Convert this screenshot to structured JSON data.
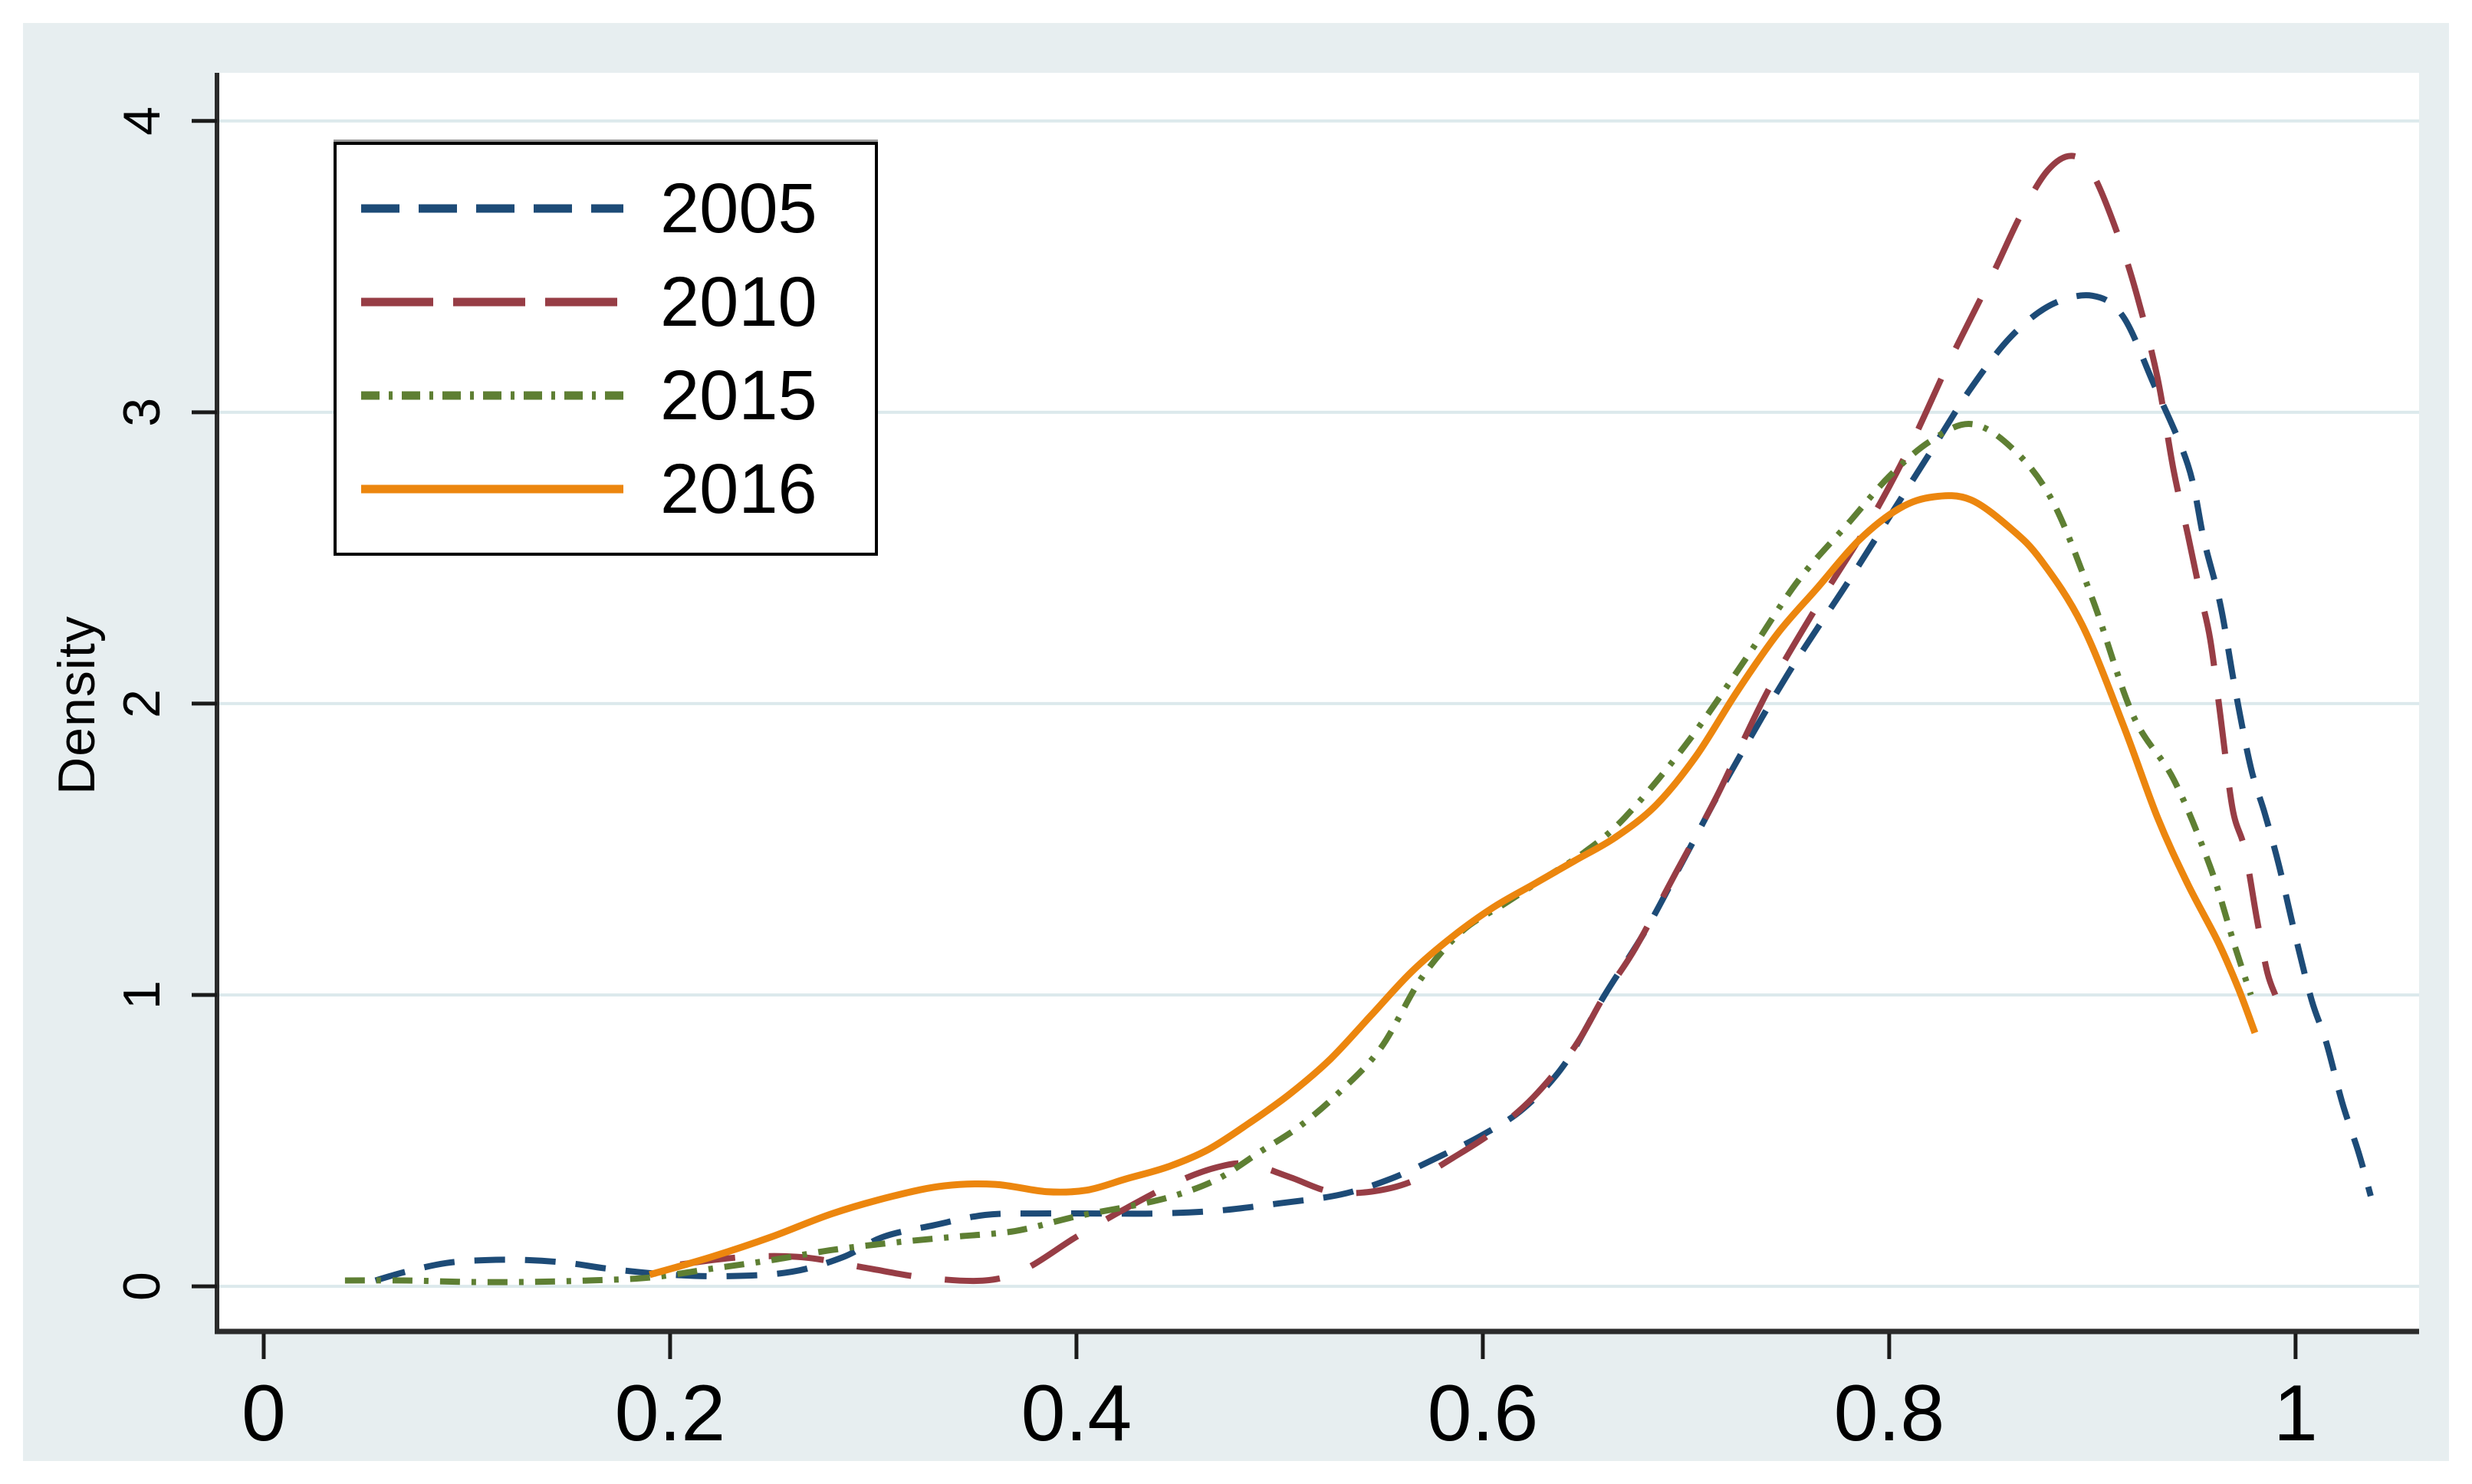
{
  "figure": {
    "background": "#ffffff",
    "panel_background": "#e7eef0",
    "plot_background": "#ffffff",
    "grid_color": "#dce9ec",
    "axis_color": "#2b2b2b",
    "tick_color": "#1a1a1a",
    "text_color": "#000000"
  },
  "chart_data": {
    "type": "line",
    "title": "",
    "xlabel": "",
    "ylabel": "Density",
    "grid": "horizontal",
    "legend_position": "top-left",
    "xlim": [
      -0.023,
      1.0608
    ],
    "ylim": [
      -0.155,
      4.152
    ],
    "x_ticks": [
      0,
      0.2,
      0.4,
      0.6,
      0.8,
      1
    ],
    "x_tick_labels": [
      "0",
      "0.2",
      "0.4",
      "0.6",
      "0.8",
      "1"
    ],
    "y_ticks": [
      0,
      1,
      2,
      3,
      4
    ],
    "y_tick_labels": [
      "0",
      "1",
      "2",
      "3",
      "4"
    ],
    "series": [
      {
        "name": "2005",
        "color": "#1d4b77",
        "line_style": "dashed",
        "points": [
          [
            0.055,
            0.02
          ],
          [
            0.07,
            0.05
          ],
          [
            0.09,
            0.08
          ],
          [
            0.11,
            0.09
          ],
          [
            0.13,
            0.09
          ],
          [
            0.15,
            0.08
          ],
          [
            0.17,
            0.06
          ],
          [
            0.2,
            0.04
          ],
          [
            0.23,
            0.035
          ],
          [
            0.26,
            0.05
          ],
          [
            0.285,
            0.1
          ],
          [
            0.305,
            0.17
          ],
          [
            0.33,
            0.21
          ],
          [
            0.355,
            0.245
          ],
          [
            0.38,
            0.25
          ],
          [
            0.41,
            0.25
          ],
          [
            0.44,
            0.25
          ],
          [
            0.47,
            0.26
          ],
          [
            0.5,
            0.285
          ],
          [
            0.53,
            0.315
          ],
          [
            0.555,
            0.37
          ],
          [
            0.58,
            0.45
          ],
          [
            0.6,
            0.52
          ],
          [
            0.62,
            0.61
          ],
          [
            0.64,
            0.76
          ],
          [
            0.66,
            1.0
          ],
          [
            0.68,
            1.22
          ],
          [
            0.7,
            1.48
          ],
          [
            0.72,
            1.74
          ],
          [
            0.75,
            2.1
          ],
          [
            0.78,
            2.42
          ],
          [
            0.8,
            2.64
          ],
          [
            0.82,
            2.86
          ],
          [
            0.84,
            3.08
          ],
          [
            0.86,
            3.26
          ],
          [
            0.88,
            3.37
          ],
          [
            0.9,
            3.4
          ],
          [
            0.915,
            3.33
          ],
          [
            0.93,
            3.1
          ],
          [
            0.947,
            2.82
          ],
          [
            0.955,
            2.56
          ],
          [
            0.963,
            2.34
          ],
          [
            0.97,
            2.06
          ],
          [
            0.978,
            1.78
          ],
          [
            0.985,
            1.62
          ],
          [
            0.992,
            1.44
          ],
          [
            1.0,
            1.2
          ],
          [
            1.008,
            0.98
          ],
          [
            1.015,
            0.84
          ],
          [
            1.023,
            0.63
          ],
          [
            1.031,
            0.46
          ],
          [
            1.037,
            0.31
          ]
        ]
      },
      {
        "name": "2010",
        "color": "#973d45",
        "line_style": "long-dash",
        "points": [
          [
            0.205,
            0.075
          ],
          [
            0.235,
            0.1
          ],
          [
            0.265,
            0.1
          ],
          [
            0.295,
            0.065
          ],
          [
            0.325,
            0.03
          ],
          [
            0.355,
            0.02
          ],
          [
            0.375,
            0.06
          ],
          [
            0.4,
            0.17
          ],
          [
            0.425,
            0.27
          ],
          [
            0.45,
            0.36
          ],
          [
            0.47,
            0.41
          ],
          [
            0.485,
            0.42
          ],
          [
            0.505,
            0.375
          ],
          [
            0.525,
            0.325
          ],
          [
            0.545,
            0.325
          ],
          [
            0.565,
            0.36
          ],
          [
            0.585,
            0.44
          ],
          [
            0.605,
            0.53
          ],
          [
            0.625,
            0.65
          ],
          [
            0.645,
            0.82
          ],
          [
            0.66,
            1.0
          ],
          [
            0.675,
            1.16
          ],
          [
            0.695,
            1.42
          ],
          [
            0.715,
            1.68
          ],
          [
            0.74,
            2.04
          ],
          [
            0.765,
            2.34
          ],
          [
            0.79,
            2.62
          ],
          [
            0.81,
            2.88
          ],
          [
            0.83,
            3.18
          ],
          [
            0.85,
            3.46
          ],
          [
            0.865,
            3.68
          ],
          [
            0.878,
            3.83
          ],
          [
            0.89,
            3.88
          ],
          [
            0.9,
            3.82
          ],
          [
            0.912,
            3.62
          ],
          [
            0.922,
            3.4
          ],
          [
            0.932,
            3.12
          ],
          [
            0.94,
            2.8
          ],
          [
            0.947,
            2.58
          ],
          [
            0.953,
            2.38
          ],
          [
            0.958,
            2.22
          ],
          [
            0.963,
            1.96
          ],
          [
            0.969,
            1.64
          ],
          [
            0.975,
            1.5
          ],
          [
            0.981,
            1.26
          ],
          [
            0.986,
            1.08
          ],
          [
            0.99,
            1.0
          ]
        ]
      },
      {
        "name": "2015",
        "color": "#5e7f33",
        "line_style": "dash-dot",
        "points": [
          [
            0.04,
            0.02
          ],
          [
            0.07,
            0.02
          ],
          [
            0.1,
            0.015
          ],
          [
            0.13,
            0.015
          ],
          [
            0.16,
            0.02
          ],
          [
            0.19,
            0.03
          ],
          [
            0.22,
            0.06
          ],
          [
            0.25,
            0.09
          ],
          [
            0.28,
            0.125
          ],
          [
            0.31,
            0.15
          ],
          [
            0.34,
            0.17
          ],
          [
            0.37,
            0.19
          ],
          [
            0.4,
            0.24
          ],
          [
            0.43,
            0.28
          ],
          [
            0.45,
            0.315
          ],
          [
            0.47,
            0.37
          ],
          [
            0.49,
            0.46
          ],
          [
            0.51,
            0.55
          ],
          [
            0.53,
            0.67
          ],
          [
            0.55,
            0.82
          ],
          [
            0.57,
            1.06
          ],
          [
            0.59,
            1.22
          ],
          [
            0.61,
            1.31
          ],
          [
            0.63,
            1.4
          ],
          [
            0.65,
            1.49
          ],
          [
            0.67,
            1.61
          ],
          [
            0.7,
            1.86
          ],
          [
            0.73,
            2.16
          ],
          [
            0.755,
            2.42
          ],
          [
            0.78,
            2.62
          ],
          [
            0.8,
            2.78
          ],
          [
            0.82,
            2.9
          ],
          [
            0.84,
            2.96
          ],
          [
            0.86,
            2.88
          ],
          [
            0.88,
            2.7
          ],
          [
            0.9,
            2.36
          ],
          [
            0.92,
            1.96
          ],
          [
            0.94,
            1.74
          ],
          [
            0.958,
            1.44
          ],
          [
            0.97,
            1.17
          ],
          [
            0.978,
            1.0
          ]
        ]
      },
      {
        "name": "2016",
        "color": "#ec860e",
        "line_style": "solid",
        "points": [
          [
            0.19,
            0.04
          ],
          [
            0.22,
            0.1
          ],
          [
            0.25,
            0.17
          ],
          [
            0.28,
            0.25
          ],
          [
            0.31,
            0.31
          ],
          [
            0.335,
            0.345
          ],
          [
            0.36,
            0.35
          ],
          [
            0.385,
            0.325
          ],
          [
            0.405,
            0.33
          ],
          [
            0.425,
            0.37
          ],
          [
            0.445,
            0.41
          ],
          [
            0.465,
            0.47
          ],
          [
            0.485,
            0.56
          ],
          [
            0.505,
            0.66
          ],
          [
            0.525,
            0.78
          ],
          [
            0.545,
            0.93
          ],
          [
            0.565,
            1.08
          ],
          [
            0.585,
            1.2
          ],
          [
            0.605,
            1.3
          ],
          [
            0.625,
            1.38
          ],
          [
            0.645,
            1.46
          ],
          [
            0.665,
            1.54
          ],
          [
            0.685,
            1.65
          ],
          [
            0.705,
            1.82
          ],
          [
            0.725,
            2.04
          ],
          [
            0.745,
            2.24
          ],
          [
            0.765,
            2.4
          ],
          [
            0.785,
            2.56
          ],
          [
            0.805,
            2.67
          ],
          [
            0.822,
            2.71
          ],
          [
            0.84,
            2.7
          ],
          [
            0.86,
            2.6
          ],
          [
            0.875,
            2.49
          ],
          [
            0.895,
            2.27
          ],
          [
            0.915,
            1.93
          ],
          [
            0.932,
            1.61
          ],
          [
            0.947,
            1.38
          ],
          [
            0.962,
            1.18
          ],
          [
            0.972,
            1.02
          ],
          [
            0.98,
            0.87
          ]
        ]
      }
    ]
  }
}
